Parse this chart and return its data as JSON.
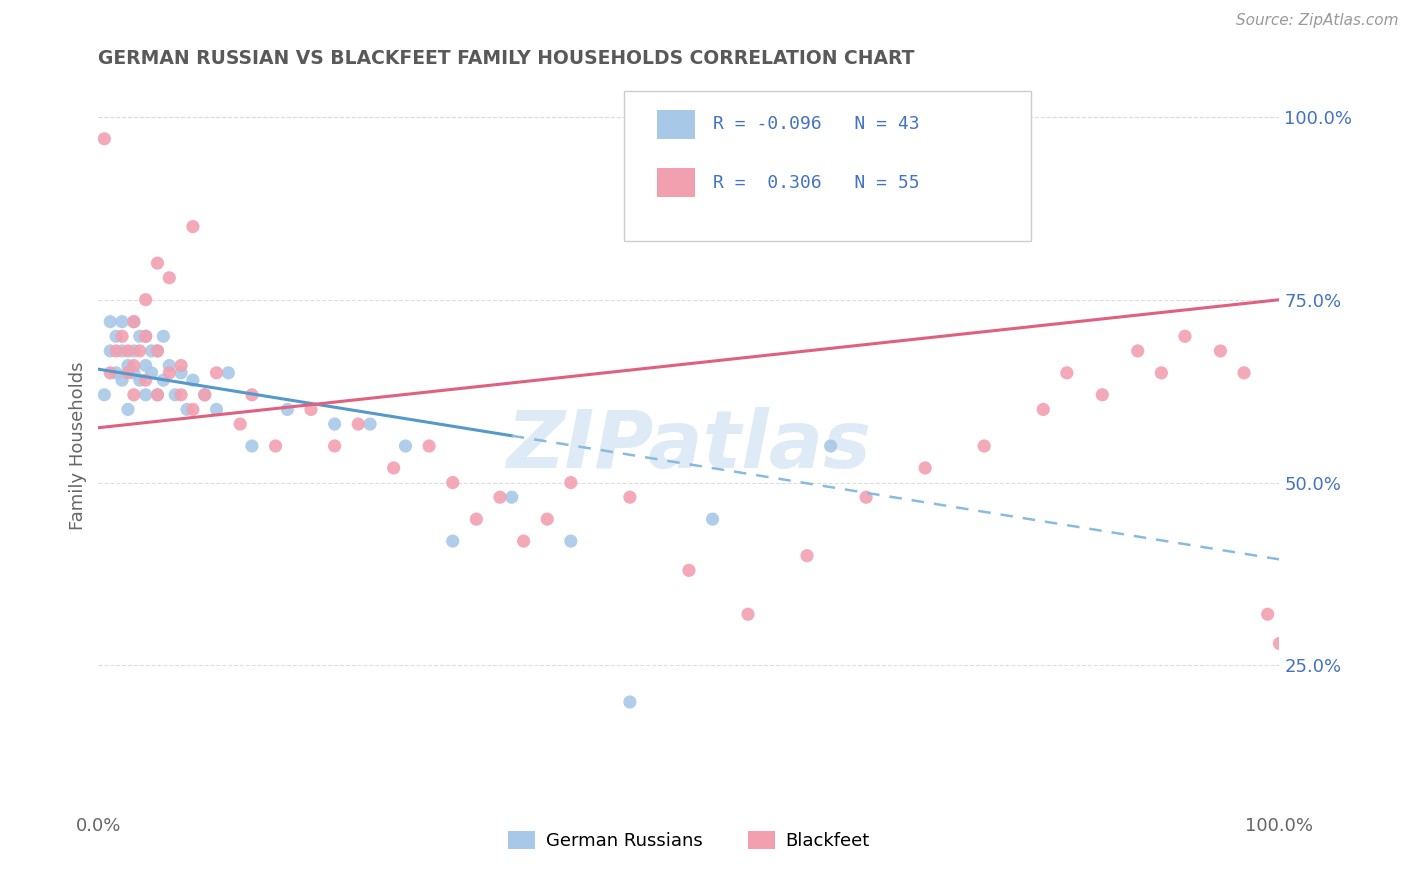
{
  "title": "GERMAN RUSSIAN VS BLACKFEET FAMILY HOUSEHOLDS CORRELATION CHART",
  "source_text": "Source: ZipAtlas.com",
  "ylabel": "Family Households",
  "right_yticks": [
    "25.0%",
    "50.0%",
    "75.0%",
    "100.0%"
  ],
  "right_ytick_vals": [
    0.25,
    0.5,
    0.75,
    1.0
  ],
  "xlim": [
    0.0,
    1.0
  ],
  "ylim": [
    0.05,
    1.05
  ],
  "legend_label1": "German Russians",
  "legend_label2": "Blackfeet",
  "blue_scatter": "#A8C8E8",
  "pink_scatter": "#F2A0B0",
  "blue_line_solid": "#5599CC",
  "blue_line_dash": "#88BBDD",
  "pink_line": "#E06080",
  "text_color": "#4472C4",
  "title_color": "#595959",
  "grid_color": "#DDDDDD",
  "watermark_color": "#C8DFF0",
  "r_blue": -0.096,
  "r_pink": 0.306,
  "n_blue": 43,
  "n_pink": 55,
  "gr_x": [
    0.005,
    0.01,
    0.01,
    0.015,
    0.015,
    0.02,
    0.02,
    0.02,
    0.025,
    0.025,
    0.03,
    0.03,
    0.03,
    0.035,
    0.035,
    0.04,
    0.04,
    0.04,
    0.045,
    0.045,
    0.05,
    0.05,
    0.055,
    0.055,
    0.06,
    0.065,
    0.07,
    0.075,
    0.08,
    0.09,
    0.1,
    0.11,
    0.13,
    0.16,
    0.2,
    0.23,
    0.26,
    0.3,
    0.35,
    0.4,
    0.45,
    0.52,
    0.62
  ],
  "gr_y": [
    0.62,
    0.68,
    0.72,
    0.65,
    0.7,
    0.64,
    0.68,
    0.72,
    0.6,
    0.66,
    0.65,
    0.68,
    0.72,
    0.64,
    0.7,
    0.62,
    0.66,
    0.7,
    0.65,
    0.68,
    0.62,
    0.68,
    0.64,
    0.7,
    0.66,
    0.62,
    0.65,
    0.6,
    0.64,
    0.62,
    0.6,
    0.65,
    0.55,
    0.6,
    0.58,
    0.58,
    0.55,
    0.42,
    0.48,
    0.42,
    0.2,
    0.45,
    0.55
  ],
  "bf_x": [
    0.005,
    0.01,
    0.015,
    0.02,
    0.025,
    0.025,
    0.03,
    0.03,
    0.035,
    0.04,
    0.04,
    0.05,
    0.05,
    0.06,
    0.07,
    0.07,
    0.08,
    0.09,
    0.1,
    0.12,
    0.13,
    0.15,
    0.18,
    0.2,
    0.22,
    0.25,
    0.28,
    0.3,
    0.32,
    0.34,
    0.36,
    0.38,
    0.4,
    0.45,
    0.5,
    0.55,
    0.6,
    0.65,
    0.7,
    0.75,
    0.8,
    0.82,
    0.85,
    0.88,
    0.9,
    0.92,
    0.95,
    0.97,
    0.99,
    1.0,
    0.03,
    0.04,
    0.05,
    0.06,
    0.08
  ],
  "bf_y": [
    0.97,
    0.65,
    0.68,
    0.7,
    0.65,
    0.68,
    0.62,
    0.66,
    0.68,
    0.64,
    0.7,
    0.62,
    0.68,
    0.65,
    0.62,
    0.66,
    0.6,
    0.62,
    0.65,
    0.58,
    0.62,
    0.55,
    0.6,
    0.55,
    0.58,
    0.52,
    0.55,
    0.5,
    0.45,
    0.48,
    0.42,
    0.45,
    0.5,
    0.48,
    0.38,
    0.32,
    0.4,
    0.48,
    0.52,
    0.55,
    0.6,
    0.65,
    0.62,
    0.68,
    0.65,
    0.7,
    0.68,
    0.65,
    0.32,
    0.28,
    0.72,
    0.75,
    0.8,
    0.78,
    0.85
  ]
}
